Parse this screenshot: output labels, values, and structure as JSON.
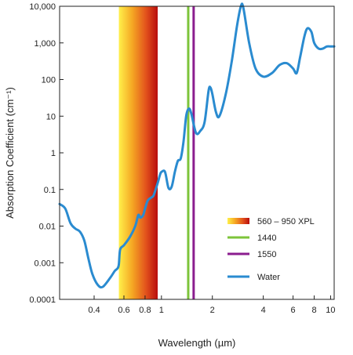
{
  "chart_data": {
    "type": "line",
    "xlabel": "Wavelength (µm)",
    "ylabel": "Absorption Coefficient (cm⁻¹)",
    "xscale": "log",
    "yscale": "log",
    "xlim": [
      0.25,
      10.5
    ],
    "ylim": [
      0.0001,
      10000
    ],
    "x_ticks": [
      0.4,
      0.6,
      0.8,
      1,
      2,
      4,
      6,
      8,
      10
    ],
    "x_tick_labels": [
      "0.4",
      "0.6",
      "0.8",
      "1",
      "2",
      "4",
      "6",
      "8",
      "10"
    ],
    "y_ticks": [
      0.0001,
      0.001,
      0.01,
      0.1,
      1,
      10,
      100,
      1000,
      10000
    ],
    "y_tick_labels": [
      "0.0001",
      "0.001",
      "0.01",
      "0.1",
      "1",
      "10",
      "100",
      "1,000",
      "10,000"
    ],
    "grid": false,
    "legend_position": "right-middle",
    "band": {
      "name": "560 – 950 XPL",
      "x_range": [
        0.56,
        0.95
      ],
      "colors": [
        "#fff04a",
        "#f5a623",
        "#e2521c",
        "#b80d0d"
      ]
    },
    "vlines": [
      {
        "name": "1440",
        "x": 1.44,
        "color": "#7dc43a"
      },
      {
        "name": "1550",
        "x": 1.55,
        "color": "#8b1d8f"
      }
    ],
    "series": [
      {
        "name": "Water",
        "color": "#2a8bd0",
        "x": [
          0.25,
          0.27,
          0.29,
          0.31,
          0.33,
          0.35,
          0.37,
          0.39,
          0.42,
          0.45,
          0.5,
          0.53,
          0.55,
          0.56,
          0.57,
          0.6,
          0.65,
          0.7,
          0.73,
          0.75,
          0.78,
          0.8,
          0.83,
          0.87,
          0.9,
          0.95,
          0.98,
          1.0,
          1.05,
          1.1,
          1.15,
          1.2,
          1.25,
          1.3,
          1.35,
          1.4,
          1.45,
          1.5,
          1.6,
          1.7,
          1.8,
          1.9,
          1.95,
          2.0,
          2.1,
          2.2,
          2.4,
          2.6,
          2.8,
          2.95,
          3.05,
          3.3,
          3.6,
          4.0,
          4.5,
          5.0,
          5.5,
          6.0,
          6.3,
          6.6,
          7.0,
          7.3,
          7.7,
          8.0,
          8.5,
          9.0,
          9.5,
          10.0,
          10.5
        ],
        "y": [
          0.04,
          0.03,
          0.012,
          0.0085,
          0.007,
          0.004,
          0.0013,
          0.0005,
          0.00025,
          0.00022,
          0.0004,
          0.0006,
          0.0007,
          0.0009,
          0.0023,
          0.003,
          0.005,
          0.01,
          0.02,
          0.017,
          0.02,
          0.03,
          0.05,
          0.06,
          0.07,
          0.15,
          0.25,
          0.3,
          0.3,
          0.11,
          0.12,
          0.3,
          0.6,
          0.7,
          2.0,
          10.0,
          16.0,
          12.0,
          3.5,
          4.0,
          7.0,
          50.0,
          60.0,
          40.0,
          13.0,
          10.0,
          40.0,
          300.0,
          3000.0,
          10000.0,
          9000.0,
          1000.0,
          200.0,
          120.0,
          150.0,
          250.0,
          280.0,
          200.0,
          150.0,
          400.0,
          1500.0,
          2500.0,
          2000.0,
          1000.0,
          700.0,
          700.0,
          800.0,
          800.0,
          800.0
        ]
      }
    ]
  }
}
